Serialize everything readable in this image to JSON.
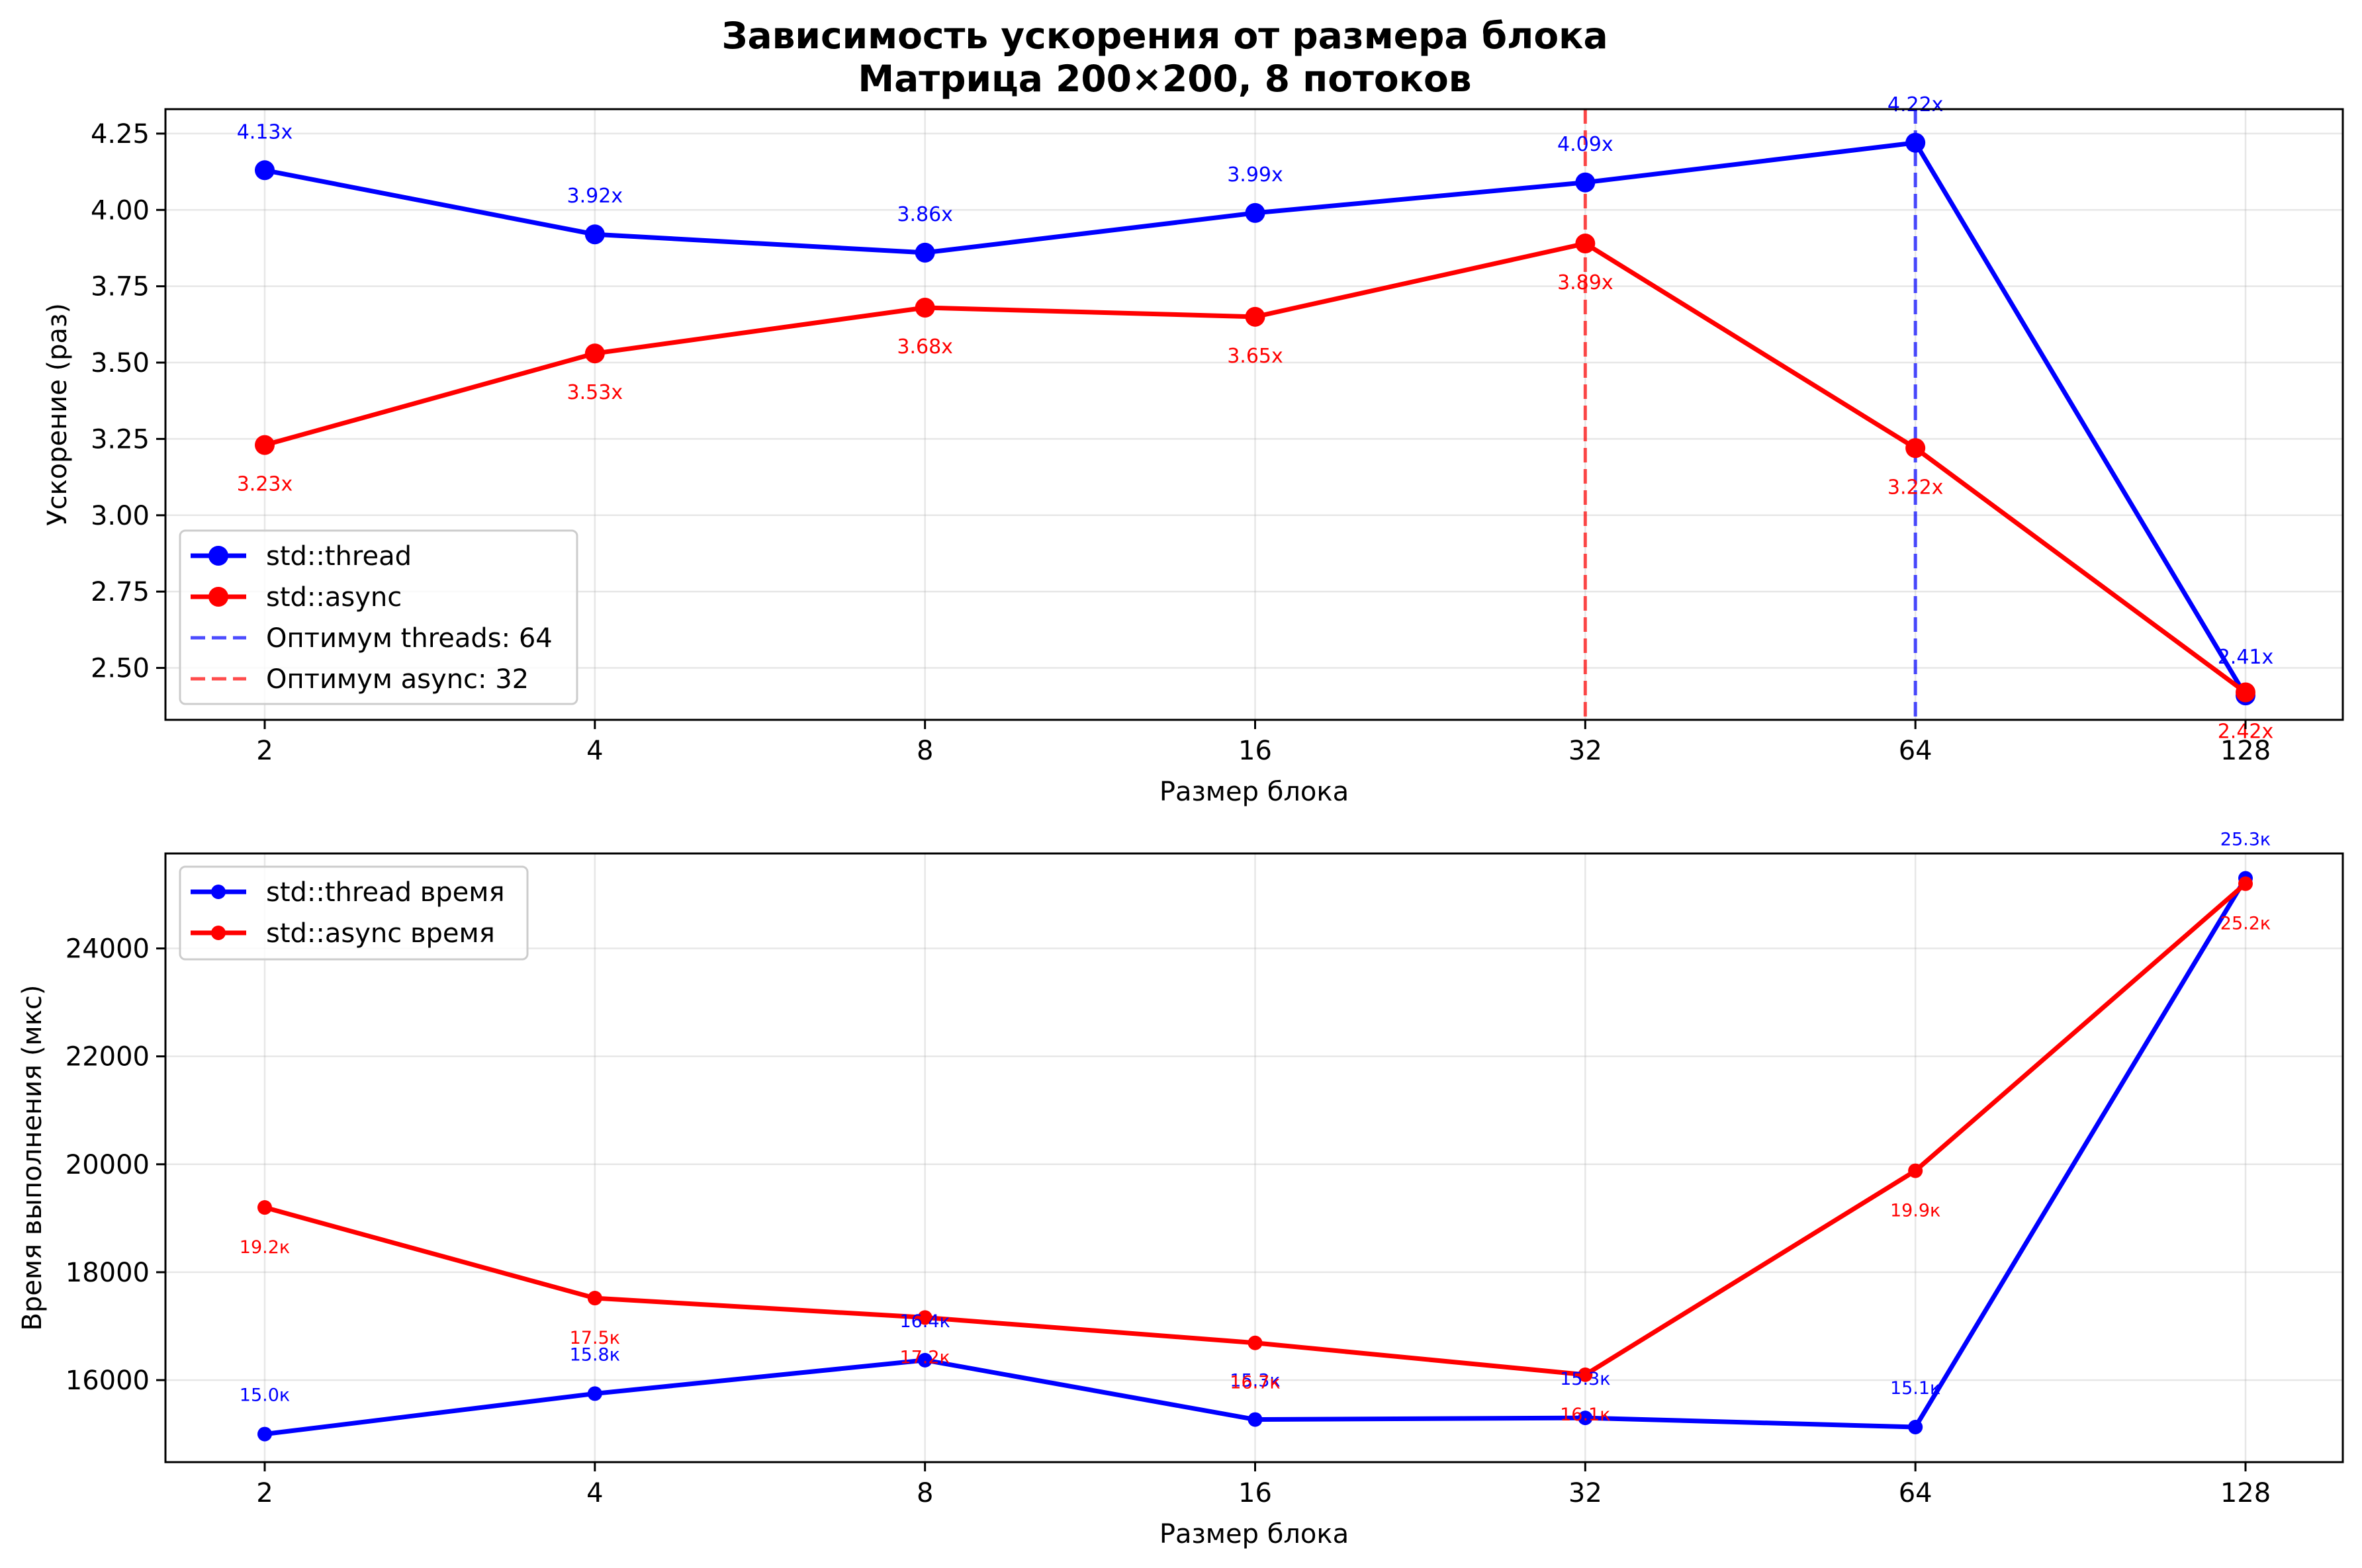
{
  "title_line1": "Зависимость ускорения от размера блока",
  "title_line2": "Матрица 200×200, 8 потоков",
  "chart_data": [
    {
      "type": "line",
      "categories": [
        "2",
        "4",
        "8",
        "16",
        "32",
        "64",
        "128"
      ],
      "xlabel": "Размер блока",
      "ylabel": "Ускорение (раз)",
      "ylim": [
        2.33,
        4.33
      ],
      "yticks": [
        "2.50",
        "2.75",
        "3.00",
        "3.25",
        "3.50",
        "3.75",
        "4.00",
        "4.25"
      ],
      "grid": true,
      "legend_position": "lower-left",
      "series": [
        {
          "name": "std::thread",
          "color": "#0000ff",
          "values": [
            4.13,
            3.92,
            3.86,
            3.99,
            4.09,
            4.22,
            2.41
          ],
          "labels": [
            "4.13x",
            "3.92x",
            "3.86x",
            "3.99x",
            "4.09x",
            "4.22x",
            "2.41x"
          ],
          "label_side": "above"
        },
        {
          "name": "std::async",
          "color": "#ff0000",
          "values": [
            3.23,
            3.53,
            3.68,
            3.65,
            3.89,
            3.22,
            2.42
          ],
          "labels": [
            "3.23x",
            "3.53x",
            "3.68x",
            "3.65x",
            "3.89x",
            "3.22x",
            "2.42x"
          ],
          "label_side": "below"
        }
      ],
      "vlines": [
        {
          "name": "Оптимум threads: 64",
          "category": "64",
          "color": "#0000ff"
        },
        {
          "name": "Оптимум async: 32",
          "category": "32",
          "color": "#ff0000"
        }
      ]
    },
    {
      "type": "line",
      "categories": [
        "2",
        "4",
        "8",
        "16",
        "32",
        "64",
        "128"
      ],
      "xlabel": "Размер блока",
      "ylabel": "Время выполнения (мкс)",
      "ylim": [
        14480,
        25760
      ],
      "yticks": [
        "16000",
        "18000",
        "20000",
        "22000",
        "24000"
      ],
      "grid": true,
      "legend_position": "upper-left",
      "series": [
        {
          "name": "std::thread время",
          "color": "#0000ff",
          "values": [
            15000,
            15750,
            16370,
            15270,
            15300,
            15130,
            25300
          ],
          "labels": [
            "15.0к",
            "15.8к",
            "16.4к",
            "15.3к",
            "15.3к",
            "15.1к",
            "25.3к"
          ],
          "label_side": "above"
        },
        {
          "name": "std::async время",
          "color": "#ff0000",
          "values": [
            19200,
            17520,
            17160,
            16690,
            16100,
            19880,
            25200
          ],
          "labels": [
            "19.2к",
            "17.5к",
            "17.2к",
            "16.7к",
            "16.1к",
            "19.9к",
            "25.2к"
          ],
          "label_side": "below"
        }
      ]
    }
  ]
}
